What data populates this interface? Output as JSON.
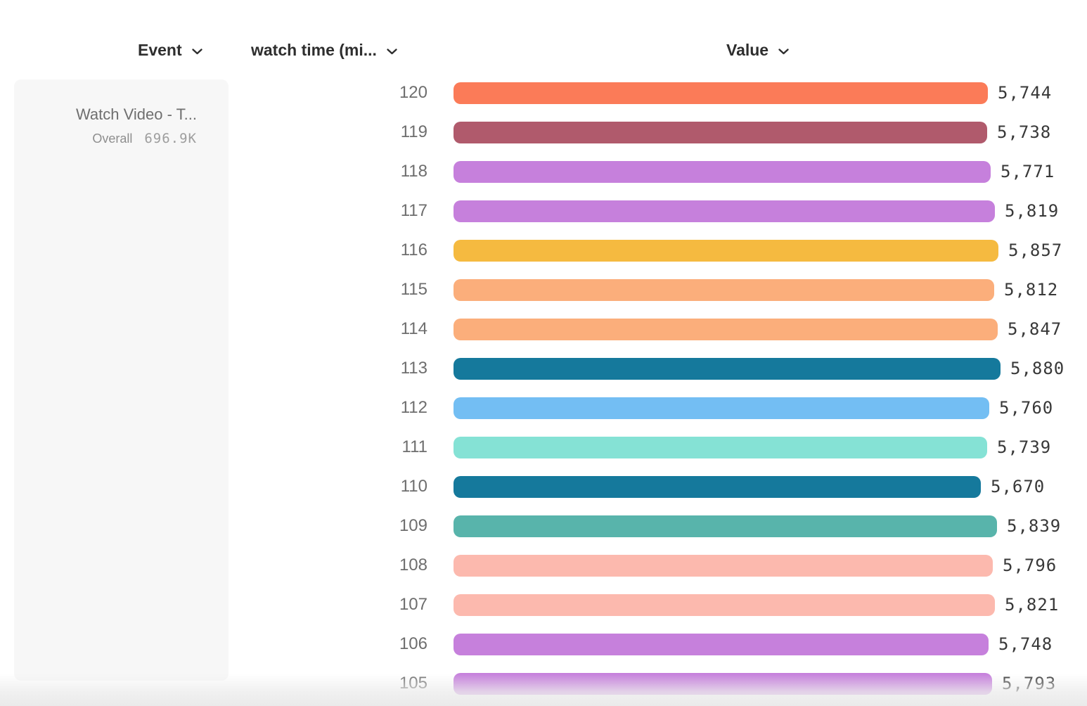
{
  "header": {
    "event_label": "Event",
    "watch_time_label": "watch time (mi...",
    "value_label": "Value"
  },
  "event_card": {
    "title": "Watch Video - T...",
    "overall_label": "Overall",
    "overall_value": "696.9K"
  },
  "chart_data": {
    "type": "bar",
    "orientation": "horizontal",
    "title": "",
    "xlabel": "Value",
    "ylabel": "watch time (mi...",
    "xlim": [
      0,
      5880
    ],
    "grid": false,
    "categories": [
      "120",
      "119",
      "118",
      "117",
      "116",
      "115",
      "114",
      "113",
      "112",
      "111",
      "110",
      "109",
      "108",
      "107",
      "106",
      "105"
    ],
    "values": [
      5744,
      5738,
      5771,
      5819,
      5857,
      5812,
      5847,
      5880,
      5760,
      5739,
      5670,
      5839,
      5796,
      5821,
      5748,
      5793
    ],
    "value_labels": [
      "5,744",
      "5,738",
      "5,771",
      "5,819",
      "5,857",
      "5,812",
      "5,847",
      "5,880",
      "5,760",
      "5,739",
      "5,670",
      "5,839",
      "5,796",
      "5,821",
      "5,748",
      "5,793"
    ],
    "colors": [
      "#FB7B58",
      "#B05A6C",
      "#C680DC",
      "#C680DC",
      "#F5BA40",
      "#FBAE7B",
      "#FBAE7B",
      "#15799C",
      "#73BEF3",
      "#85E2D5",
      "#15799C",
      "#58B4AB",
      "#FCB9AE",
      "#FCB9AE",
      "#C680DC",
      "#C680DC"
    ]
  },
  "layout_colors": {
    "card_background": "#f7f7f7",
    "header_text": "#2e2e2e",
    "category_text": "#6e6e6e",
    "value_text": "#383838"
  }
}
